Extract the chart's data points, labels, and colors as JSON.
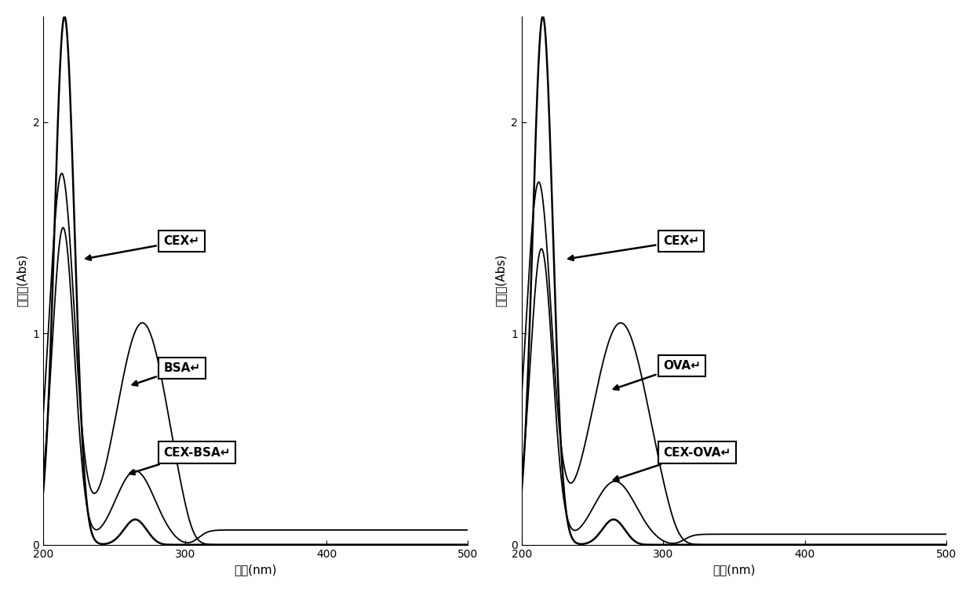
{
  "xlim": [
    200,
    500
  ],
  "ylim": [
    0,
    2.5
  ],
  "yticks": [
    0,
    1,
    2
  ],
  "xticks": [
    200,
    300,
    400,
    500
  ],
  "ylabel": "吸光度(Abs)",
  "xlabel": "波长(nm)",
  "background": "#ffffff",
  "line_color": "#000000"
}
